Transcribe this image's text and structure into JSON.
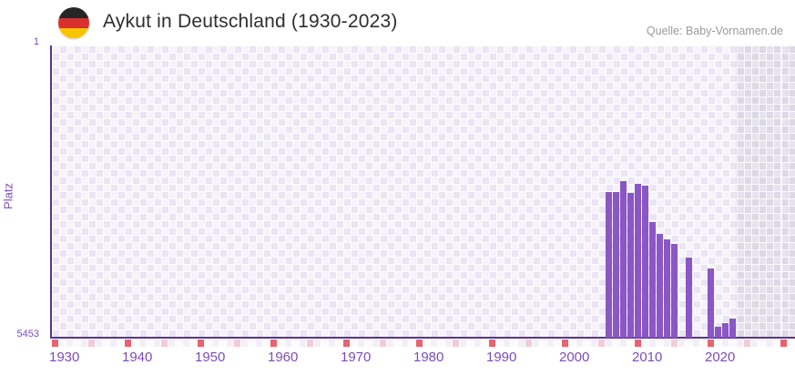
{
  "header": {
    "title": "Aykut in Deutschland (1930-2023)",
    "source": "Quelle: Baby-Vornamen.de",
    "flag_icon": "germany-flag-roundel"
  },
  "chart_data": {
    "type": "bar",
    "title": "Aykut in Deutschland (1930-2023)",
    "ylabel": "Platz",
    "xlabel": "",
    "y_axis": {
      "labels": [
        "1",
        "5453"
      ],
      "min": 1,
      "max": 5453,
      "inverted": true,
      "note": "rank 1 is best and shown at top; bars grow upward from 5453"
    },
    "x_axis": {
      "first_year": 1930,
      "last_rendered_year": 2031,
      "data_last_year": 2023,
      "decade_labels": [
        "1930",
        "1940",
        "1950",
        "1960",
        "1970",
        "1980",
        "1990",
        "2000",
        "2010",
        "2020"
      ],
      "decade_marker_years": [
        1930,
        1940,
        1950,
        1960,
        1970,
        1980,
        1990,
        2000,
        2010,
        2020,
        2030
      ],
      "half_decade_marker_years": [
        1935,
        1945,
        1955,
        1965,
        1975,
        1985,
        1995,
        2005,
        2015,
        2025
      ]
    },
    "grid": "lavender checkerboard, region after 2023 grayed out",
    "legend": "none",
    "series": [
      {
        "name": "Platz",
        "points": [
          {
            "year": 2006,
            "rank": 2735
          },
          {
            "year": 2007,
            "rank": 2735
          },
          {
            "year": 2008,
            "rank": 2526
          },
          {
            "year": 2009,
            "rank": 2752
          },
          {
            "year": 2010,
            "rank": 2582
          },
          {
            "year": 2011,
            "rank": 2616
          },
          {
            "year": 2012,
            "rank": 3296
          },
          {
            "year": 2013,
            "rank": 3511
          },
          {
            "year": 2014,
            "rank": 3613
          },
          {
            "year": 2015,
            "rank": 3708
          },
          {
            "year": 2017,
            "rank": 3963
          },
          {
            "year": 2020,
            "rank": 4157
          },
          {
            "year": 2021,
            "rank": 5248
          },
          {
            "year": 2022,
            "rank": 5175
          },
          {
            "year": 2023,
            "rank": 5095
          }
        ]
      }
    ]
  },
  "colors": {
    "bar": "#8a57c4",
    "axis": "#5b3292",
    "tick_label": "#7c4cb8",
    "title": "#2f2f2f",
    "source": "#9b9b9b",
    "checker_dark": "#eae4f4",
    "checker_light": "#f6f3fb",
    "nodata_checker_dark": "#dcd8e5",
    "nodata_checker_light": "#e7e3ee",
    "decade_marker": "#e5646e",
    "half_decade_marker": "#f2ccd5",
    "strip_even": "#f3eff9",
    "strip_odd": "#fbfafd",
    "flag_black": "#262626",
    "flag_red": "#d92f2f",
    "flag_gold": "#f7c500"
  }
}
